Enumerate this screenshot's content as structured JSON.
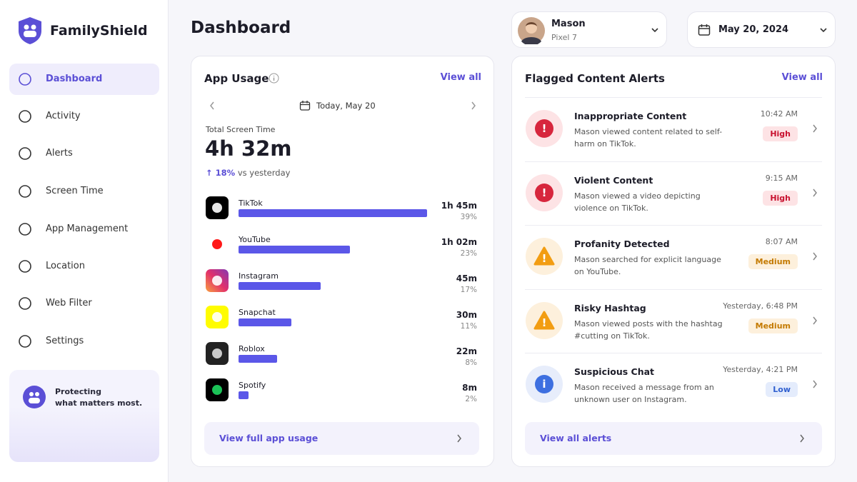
{
  "brand": "FamilyShield",
  "nav": [
    "Dashboard",
    "Activity",
    "Alerts",
    "Screen Time",
    "App Management",
    "Location",
    "Web Filter",
    "Settings"
  ],
  "promo": [
    "Protecting",
    "what matters most."
  ],
  "header": {
    "title": "Dashboard",
    "profile": {
      "name": "Mason",
      "device": "Pixel 7"
    },
    "date": "May 20, 2024"
  },
  "app_usage": {
    "title": "App Usage",
    "view_all": "View all",
    "day": "Today, May 20",
    "total_label": "Total Screen Time",
    "total": "4h 32m",
    "change": "18%",
    "change_suffix": "vs yesterday",
    "apps": [
      {
        "name": "TikTok",
        "time": "1h 45m",
        "share": 39,
        "share_label": "39%"
      },
      {
        "name": "YouTube",
        "time": "1h 02m",
        "share": 23,
        "share_label": "23%"
      },
      {
        "name": "Instagram",
        "time": "45m",
        "share": 17,
        "share_label": "17%"
      },
      {
        "name": "Snapchat",
        "time": "30m",
        "share": 11,
        "share_label": "11%"
      },
      {
        "name": "Roblox",
        "time": "22m",
        "share": 8,
        "share_label": "8%"
      },
      {
        "name": "Spotify",
        "time": "8m",
        "share": 2,
        "share_label": "2%"
      }
    ],
    "footer": "View full app usage"
  },
  "alerts": {
    "title": "Flagged Content Alerts",
    "view_all": "View all",
    "items": [
      {
        "title": "Inappropriate Content",
        "text": "Mason viewed content related to self-harm on TikTok.",
        "time": "10:42 AM",
        "severity": "High"
      },
      {
        "title": "Violent Content",
        "text": "Mason viewed a video depicting violence on TikTok.",
        "time": "9:15 AM",
        "severity": "High"
      },
      {
        "title": "Profanity Detected",
        "text": "Mason searched for explicit language on YouTube.",
        "time": "8:07 AM",
        "severity": "Medium"
      },
      {
        "title": "Risky Hashtag",
        "text": "Mason viewed posts with the hashtag #cutting on TikTok.",
        "time": "Yesterday, 6:48 PM",
        "severity": "Medium"
      },
      {
        "title": "Suspicious Chat",
        "text": "Mason received a message from an unknown user on Instagram.",
        "time": "Yesterday, 4:21 PM",
        "severity": "Low"
      }
    ],
    "footer": "View all alerts"
  }
}
